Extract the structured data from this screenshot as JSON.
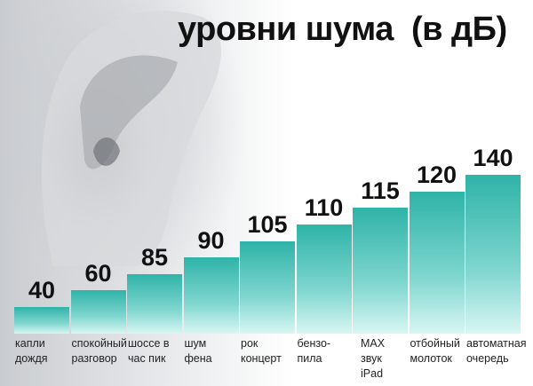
{
  "chart_data": {
    "type": "bar",
    "title": "уровни шума  (в дБ)",
    "categories": [
      "капли\nдождя",
      "спокойный\nразговор",
      "шоссе в\nчас пик",
      "шум\nфена",
      "рок\nконцерт",
      "бензо-\nпила",
      "MAX\nзвук\niPad",
      "отбойный\nмолоток",
      "автоматная\nочередь"
    ],
    "values": [
      40,
      60,
      85,
      90,
      105,
      110,
      115,
      120,
      140
    ],
    "unit": "дБ",
    "bar_color": "#2fb3a8",
    "layout_note_free": true
  }
}
